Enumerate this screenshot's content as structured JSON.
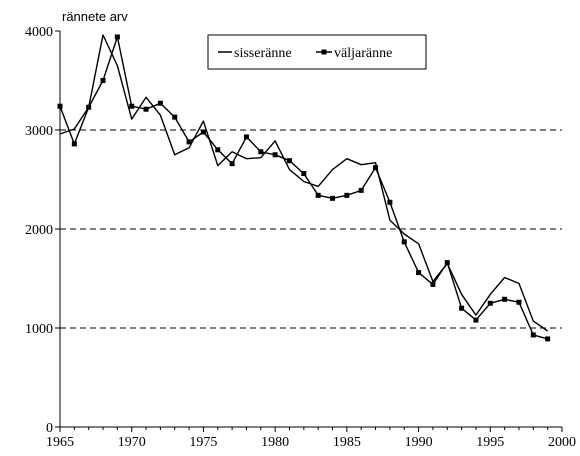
{
  "chart_data": {
    "type": "line",
    "title": "",
    "ylabel": "rännete arv",
    "xlabel": "",
    "xlim": [
      1965,
      2000
    ],
    "ylim": [
      0,
      4000
    ],
    "x_ticks": [
      1965,
      1970,
      1975,
      1980,
      1985,
      1990,
      1995,
      2000
    ],
    "y_ticks": [
      0,
      1000,
      2000,
      3000,
      4000
    ],
    "grid": "horizontal dashed at 1000, 2000, 3000",
    "legend": {
      "placement": "top-center"
    },
    "x": [
      1965,
      1966,
      1967,
      1968,
      1969,
      1970,
      1971,
      1972,
      1973,
      1974,
      1975,
      1976,
      1977,
      1978,
      1979,
      1980,
      1981,
      1982,
      1983,
      1984,
      1985,
      1986,
      1987,
      1988,
      1989,
      1990,
      1991,
      1992,
      1993,
      1994,
      1995,
      1996,
      1997,
      1998,
      1999
    ],
    "series": [
      {
        "name": "sisseränne",
        "marker": "none",
        "color": "#000000",
        "values": [
          2960,
          3010,
          3230,
          3960,
          3650,
          3110,
          3330,
          3150,
          2750,
          2820,
          3090,
          2640,
          2780,
          2710,
          2720,
          2890,
          2600,
          2480,
          2430,
          2600,
          2710,
          2650,
          2670,
          2090,
          1950,
          1850,
          1470,
          1650,
          1340,
          1130,
          1340,
          1510,
          1450,
          1070,
          970
        ]
      },
      {
        "name": "väljaränne",
        "marker": "square",
        "color": "#000000",
        "values": [
          3240,
          2860,
          3230,
          3500,
          3940,
          3240,
          3210,
          3270,
          3130,
          2880,
          2980,
          2800,
          2660,
          2930,
          2780,
          2750,
          2690,
          2560,
          2340,
          2310,
          2340,
          2390,
          2620,
          2270,
          1870,
          1560,
          1440,
          1660,
          1200,
          1080,
          1250,
          1290,
          1260,
          930,
          890
        ]
      }
    ]
  }
}
